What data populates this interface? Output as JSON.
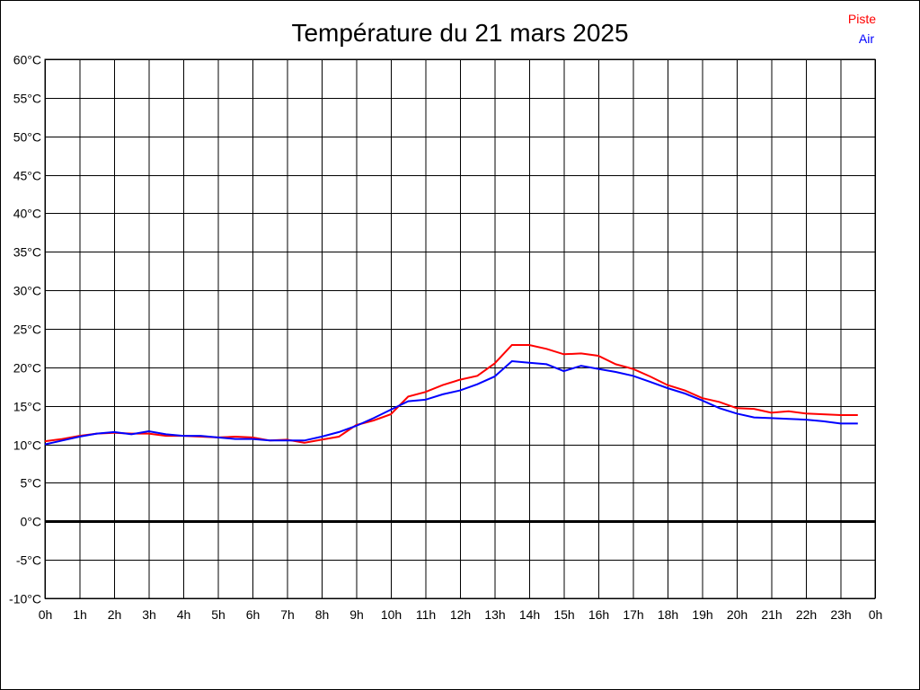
{
  "chart_data": {
    "type": "line",
    "title": "Température du 21 mars 2025",
    "xlabel": "",
    "ylabel": "",
    "x_unit": "hour",
    "xlim": [
      0,
      24
    ],
    "ylim": [
      -10,
      60
    ],
    "grid": true,
    "legend_placement": "top-right",
    "x_ticks": [
      "0h",
      "1h",
      "2h",
      "3h",
      "4h",
      "5h",
      "6h",
      "7h",
      "8h",
      "9h",
      "10h",
      "11h",
      "12h",
      "13h",
      "14h",
      "15h",
      "16h",
      "17h",
      "18h",
      "19h",
      "20h",
      "21h",
      "22h",
      "23h",
      "0h"
    ],
    "y_ticks": [
      "-10°C",
      "-5°C",
      "0°C",
      "5°C",
      "10°C",
      "15°C",
      "20°C",
      "25°C",
      "30°C",
      "35°C",
      "40°C",
      "45°C",
      "50°C",
      "55°C",
      "60°C"
    ],
    "x": [
      0,
      0.5,
      1,
      1.5,
      2,
      2.5,
      3,
      3.5,
      4,
      4.5,
      5,
      5.5,
      6,
      6.5,
      7,
      7.5,
      8,
      8.5,
      9,
      9.5,
      10,
      10.5,
      11,
      11.5,
      12,
      12.5,
      13,
      13.5,
      14,
      14.5,
      15,
      15.5,
      16,
      16.5,
      17,
      17.5,
      18,
      18.5,
      19,
      19.5,
      20,
      20.5,
      21,
      21.5,
      22,
      22.5,
      23,
      23.5
    ],
    "series": [
      {
        "name": "Piste",
        "color": "#ff0000",
        "values": [
          10.4,
          10.7,
          11.1,
          11.4,
          11.5,
          11.4,
          11.4,
          11.1,
          11.1,
          11.0,
          10.9,
          11.0,
          10.9,
          10.5,
          10.6,
          10.2,
          10.6,
          11.0,
          12.5,
          13.1,
          13.9,
          16.2,
          16.8,
          17.7,
          18.4,
          18.9,
          20.5,
          22.9,
          22.9,
          22.4,
          21.7,
          21.8,
          21.5,
          20.4,
          19.8,
          18.8,
          17.7,
          17.0,
          16.0,
          15.5,
          14.7,
          14.6,
          14.1,
          14.3,
          14.0,
          13.9,
          13.8,
          13.8
        ]
      },
      {
        "name": "Air",
        "color": "#0000ff",
        "values": [
          10.0,
          10.5,
          11.0,
          11.4,
          11.6,
          11.3,
          11.7,
          11.3,
          11.1,
          11.1,
          10.9,
          10.7,
          10.7,
          10.5,
          10.5,
          10.5,
          11.0,
          11.6,
          12.4,
          13.4,
          14.5,
          15.6,
          15.8,
          16.5,
          17.0,
          17.8,
          18.8,
          20.8,
          20.6,
          20.4,
          19.5,
          20.2,
          19.8,
          19.4,
          18.9,
          18.1,
          17.3,
          16.6,
          15.7,
          14.7,
          14.0,
          13.5,
          13.4,
          13.3,
          13.2,
          13.0,
          12.7,
          12.7
        ]
      }
    ]
  }
}
